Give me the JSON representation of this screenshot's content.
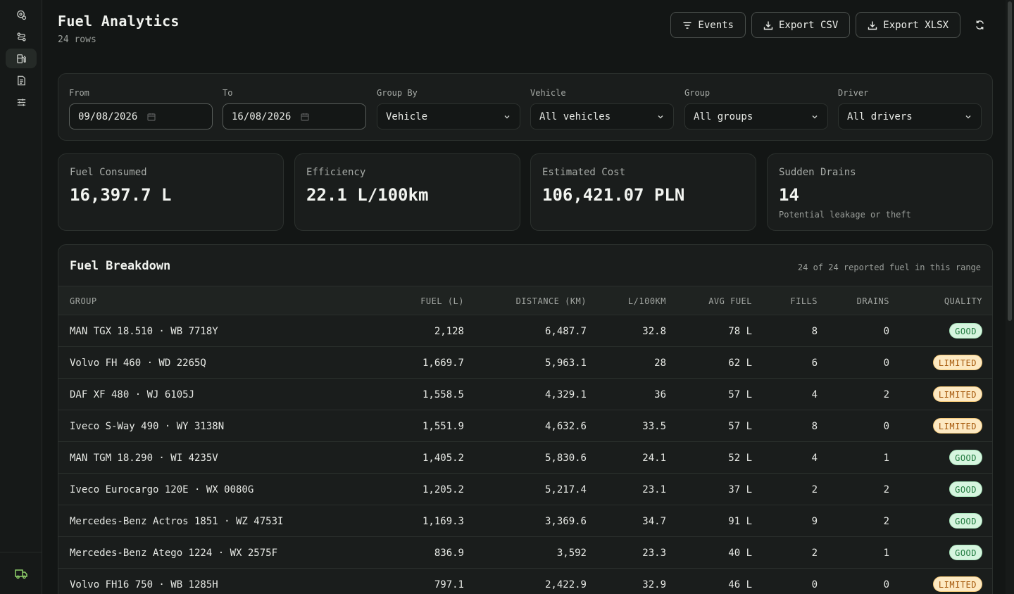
{
  "page": {
    "title": "Fuel Analytics",
    "subtitle": "24 rows"
  },
  "actions": {
    "events": "Events",
    "export_csv": "Export CSV",
    "export_xlsx": "Export XLSX"
  },
  "filters": {
    "from_label": "From",
    "from_value": "09/08/2026",
    "to_label": "To",
    "to_value": "16/08/2026",
    "group_by_label": "Group By",
    "group_by_value": "Vehicle",
    "vehicle_label": "Vehicle",
    "vehicle_value": "All vehicles",
    "group_label": "Group",
    "group_value": "All groups",
    "driver_label": "Driver",
    "driver_value": "All drivers"
  },
  "stats": [
    {
      "label": "Fuel Consumed",
      "value": "16,397.7 L",
      "note": ""
    },
    {
      "label": "Efficiency",
      "value": "22.1 L/100km",
      "note": ""
    },
    {
      "label": "Estimated Cost",
      "value": "106,421.07 PLN",
      "note": ""
    },
    {
      "label": "Sudden Drains",
      "value": "14",
      "note": "Potential leakage or theft"
    }
  ],
  "table": {
    "title": "Fuel Breakdown",
    "meta": "24 of 24 reported fuel in this range",
    "columns": [
      "GROUP",
      "FUEL (L)",
      "DISTANCE (KM)",
      "L/100KM",
      "AVG FUEL",
      "FILLS",
      "DRAINS",
      "QUALITY"
    ],
    "rows": [
      [
        "MAN TGX 18.510 · WB 7718Y",
        "2,128",
        "6,487.7",
        "32.8",
        "78 L",
        "8",
        "0",
        "GOOD"
      ],
      [
        "Volvo FH 460 · WD 2265Q",
        "1,669.7",
        "5,963.1",
        "28",
        "62 L",
        "6",
        "0",
        "LIMITED"
      ],
      [
        "DAF XF 480 · WJ 6105J",
        "1,558.5",
        "4,329.1",
        "36",
        "57 L",
        "4",
        "2",
        "LIMITED"
      ],
      [
        "Iveco S-Way 490 · WY 3138N",
        "1,551.9",
        "4,632.6",
        "33.5",
        "57 L",
        "8",
        "0",
        "LIMITED"
      ],
      [
        "MAN TGM 18.290 · WI 4235V",
        "1,405.2",
        "5,830.6",
        "24.1",
        "52 L",
        "4",
        "1",
        "GOOD"
      ],
      [
        "Iveco Eurocargo 120E · WX 0080G",
        "1,205.2",
        "5,217.4",
        "23.1",
        "37 L",
        "2",
        "2",
        "GOOD"
      ],
      [
        "Mercedes-Benz Actros 1851 · WZ 4753I",
        "1,169.3",
        "3,369.6",
        "34.7",
        "91 L",
        "9",
        "2",
        "GOOD"
      ],
      [
        "Mercedes-Benz Atego 1224 · WX 2575F",
        "836.9",
        "3,592",
        "23.3",
        "40 L",
        "2",
        "1",
        "GOOD"
      ],
      [
        "Volvo FH16 750 · WB 1285H",
        "797.1",
        "2,422.9",
        "32.9",
        "46 L",
        "0",
        "0",
        "LIMITED"
      ]
    ]
  },
  "colors": {
    "good_bg": "#d6f5df",
    "limited_bg": "#fde9c2",
    "accent_green": "#8fd16a"
  }
}
